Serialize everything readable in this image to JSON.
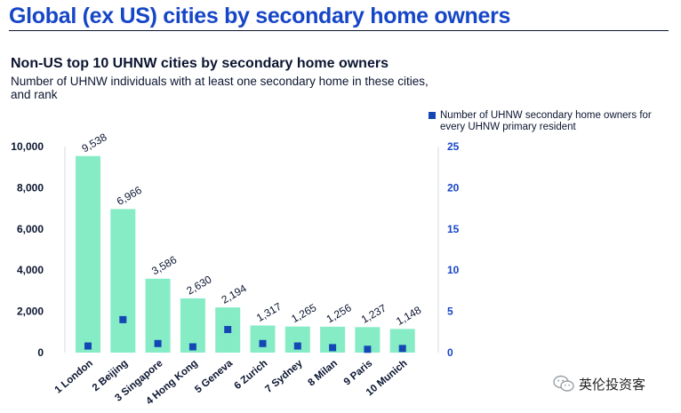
{
  "page_title": "Global (ex US) cities by secondary home owners",
  "watermark_text": "英伦投资客",
  "chart_data": {
    "type": "bar",
    "title": "Non-US top 10 UHNW cities by secondary home owners",
    "subtitle": "Number of UHNW individuals with at least one secondary home in these cities, and rank",
    "categories": [
      "1 London",
      "2 Beijing",
      "3 Singapore",
      "4 Hong Kong",
      "5 Geneva",
      "6 Zurich",
      "7 Sydney",
      "8 Milan",
      "9 Paris",
      "10 Munich"
    ],
    "series": [
      {
        "values": [
          9538,
          6966,
          3586,
          2630,
          2194,
          1317,
          1265,
          1256,
          1237,
          1148
        ],
        "data_labels": [
          "9,538",
          "6,966",
          "3,586",
          "2,630",
          "2,194",
          "1,317",
          "1,265",
          "1,256",
          "1,237",
          "1,148"
        ],
        "axis": "left",
        "color": "#86ecc6"
      },
      {
        "name": "Number of UHNW secondary home owners for every UHNW primary resident",
        "values": [
          0.8,
          4.0,
          1.1,
          0.7,
          2.8,
          1.1,
          0.8,
          0.6,
          0.4,
          0.5
        ],
        "axis": "right",
        "marker": "square",
        "color": "#1348b4"
      }
    ],
    "y_left": {
      "ylim": [
        0,
        10000
      ],
      "ticks": [
        "10,000",
        "8,000",
        "6,000",
        "4,000",
        "2,000",
        "0"
      ]
    },
    "y_right": {
      "ylim": [
        0,
        25
      ],
      "ticks": [
        "25",
        "20",
        "15",
        "10",
        "5",
        "0"
      ],
      "color": "#1646c8"
    },
    "grid": false,
    "legend_position": "top-right"
  }
}
